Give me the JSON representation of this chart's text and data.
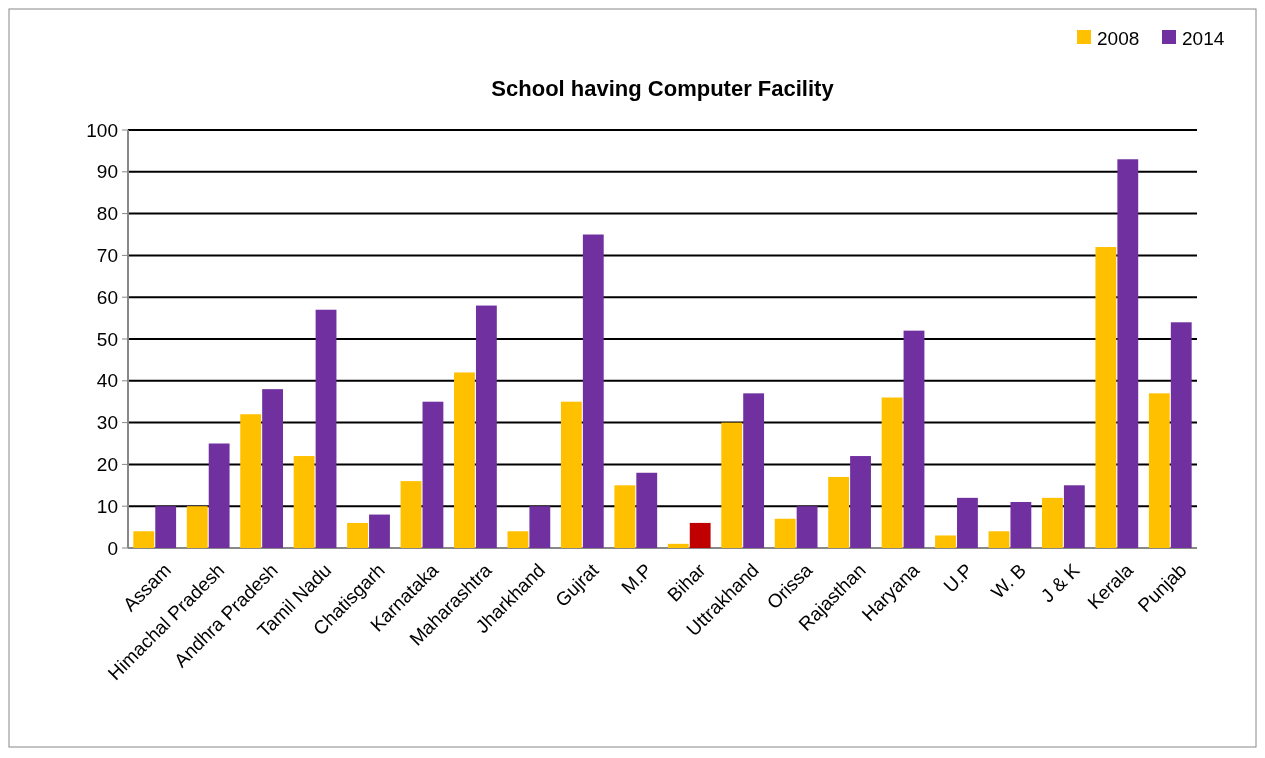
{
  "chart_data": {
    "type": "bar",
    "title": "School having Computer Facility",
    "categories": [
      "Assam",
      "Himachal Pradesh",
      "Andhra Pradesh",
      "Tamil Nadu",
      "Chatisgarh",
      "Karnataka",
      "Maharashtra",
      "Jharkhand",
      "Gujrat",
      "M.P",
      "Bihar",
      "Uttrakhand",
      "Orissa",
      "Rajasthan",
      "Haryana",
      "U.P",
      "W. B",
      "J & K",
      "Kerala",
      "Punjab"
    ],
    "series": [
      {
        "name": "2008",
        "color": "#ffc000",
        "values": [
          4,
          10,
          32,
          22,
          6,
          16,
          42,
          4,
          35,
          15,
          1,
          30,
          7,
          17,
          36,
          3,
          4,
          12,
          72,
          37
        ]
      },
      {
        "name": "2014",
        "color": "#7030a0",
        "colors": [
          "#7030a0",
          "#7030a0",
          "#7030a0",
          "#7030a0",
          "#7030a0",
          "#7030a0",
          "#7030a0",
          "#7030a0",
          "#7030a0",
          "#7030a0",
          "#c00000",
          "#7030a0",
          "#7030a0",
          "#7030a0",
          "#7030a0",
          "#7030a0",
          "#7030a0",
          "#7030a0",
          "#7030a0",
          "#7030a0"
        ],
        "values": [
          10,
          25,
          38,
          57,
          8,
          35,
          58,
          10,
          75,
          18,
          6,
          37,
          10,
          22,
          52,
          12,
          11,
          15,
          93,
          54
        ]
      }
    ],
    "ylim": [
      0,
      100
    ],
    "yticks": [
      0,
      10,
      20,
      30,
      40,
      50,
      60,
      70,
      80,
      90,
      100
    ],
    "grid": "y",
    "legend": "top right"
  }
}
